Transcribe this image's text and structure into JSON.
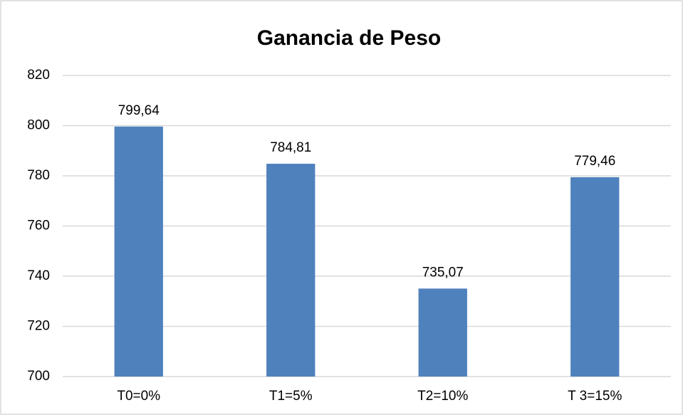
{
  "chart_data": {
    "type": "bar",
    "title": "Ganancia de Peso",
    "categories": [
      "T0=0%",
      "T1=5%",
      "T2=10%",
      "T 3=15%"
    ],
    "values": [
      799.64,
      784.81,
      735.07,
      779.46
    ],
    "value_labels": [
      "799,64",
      "784,81",
      "735,07",
      "779,46"
    ],
    "color": "#4f81bd",
    "ylim": [
      700,
      820
    ],
    "yticks": [
      700,
      720,
      740,
      760,
      780,
      800,
      820
    ],
    "grid": true
  }
}
